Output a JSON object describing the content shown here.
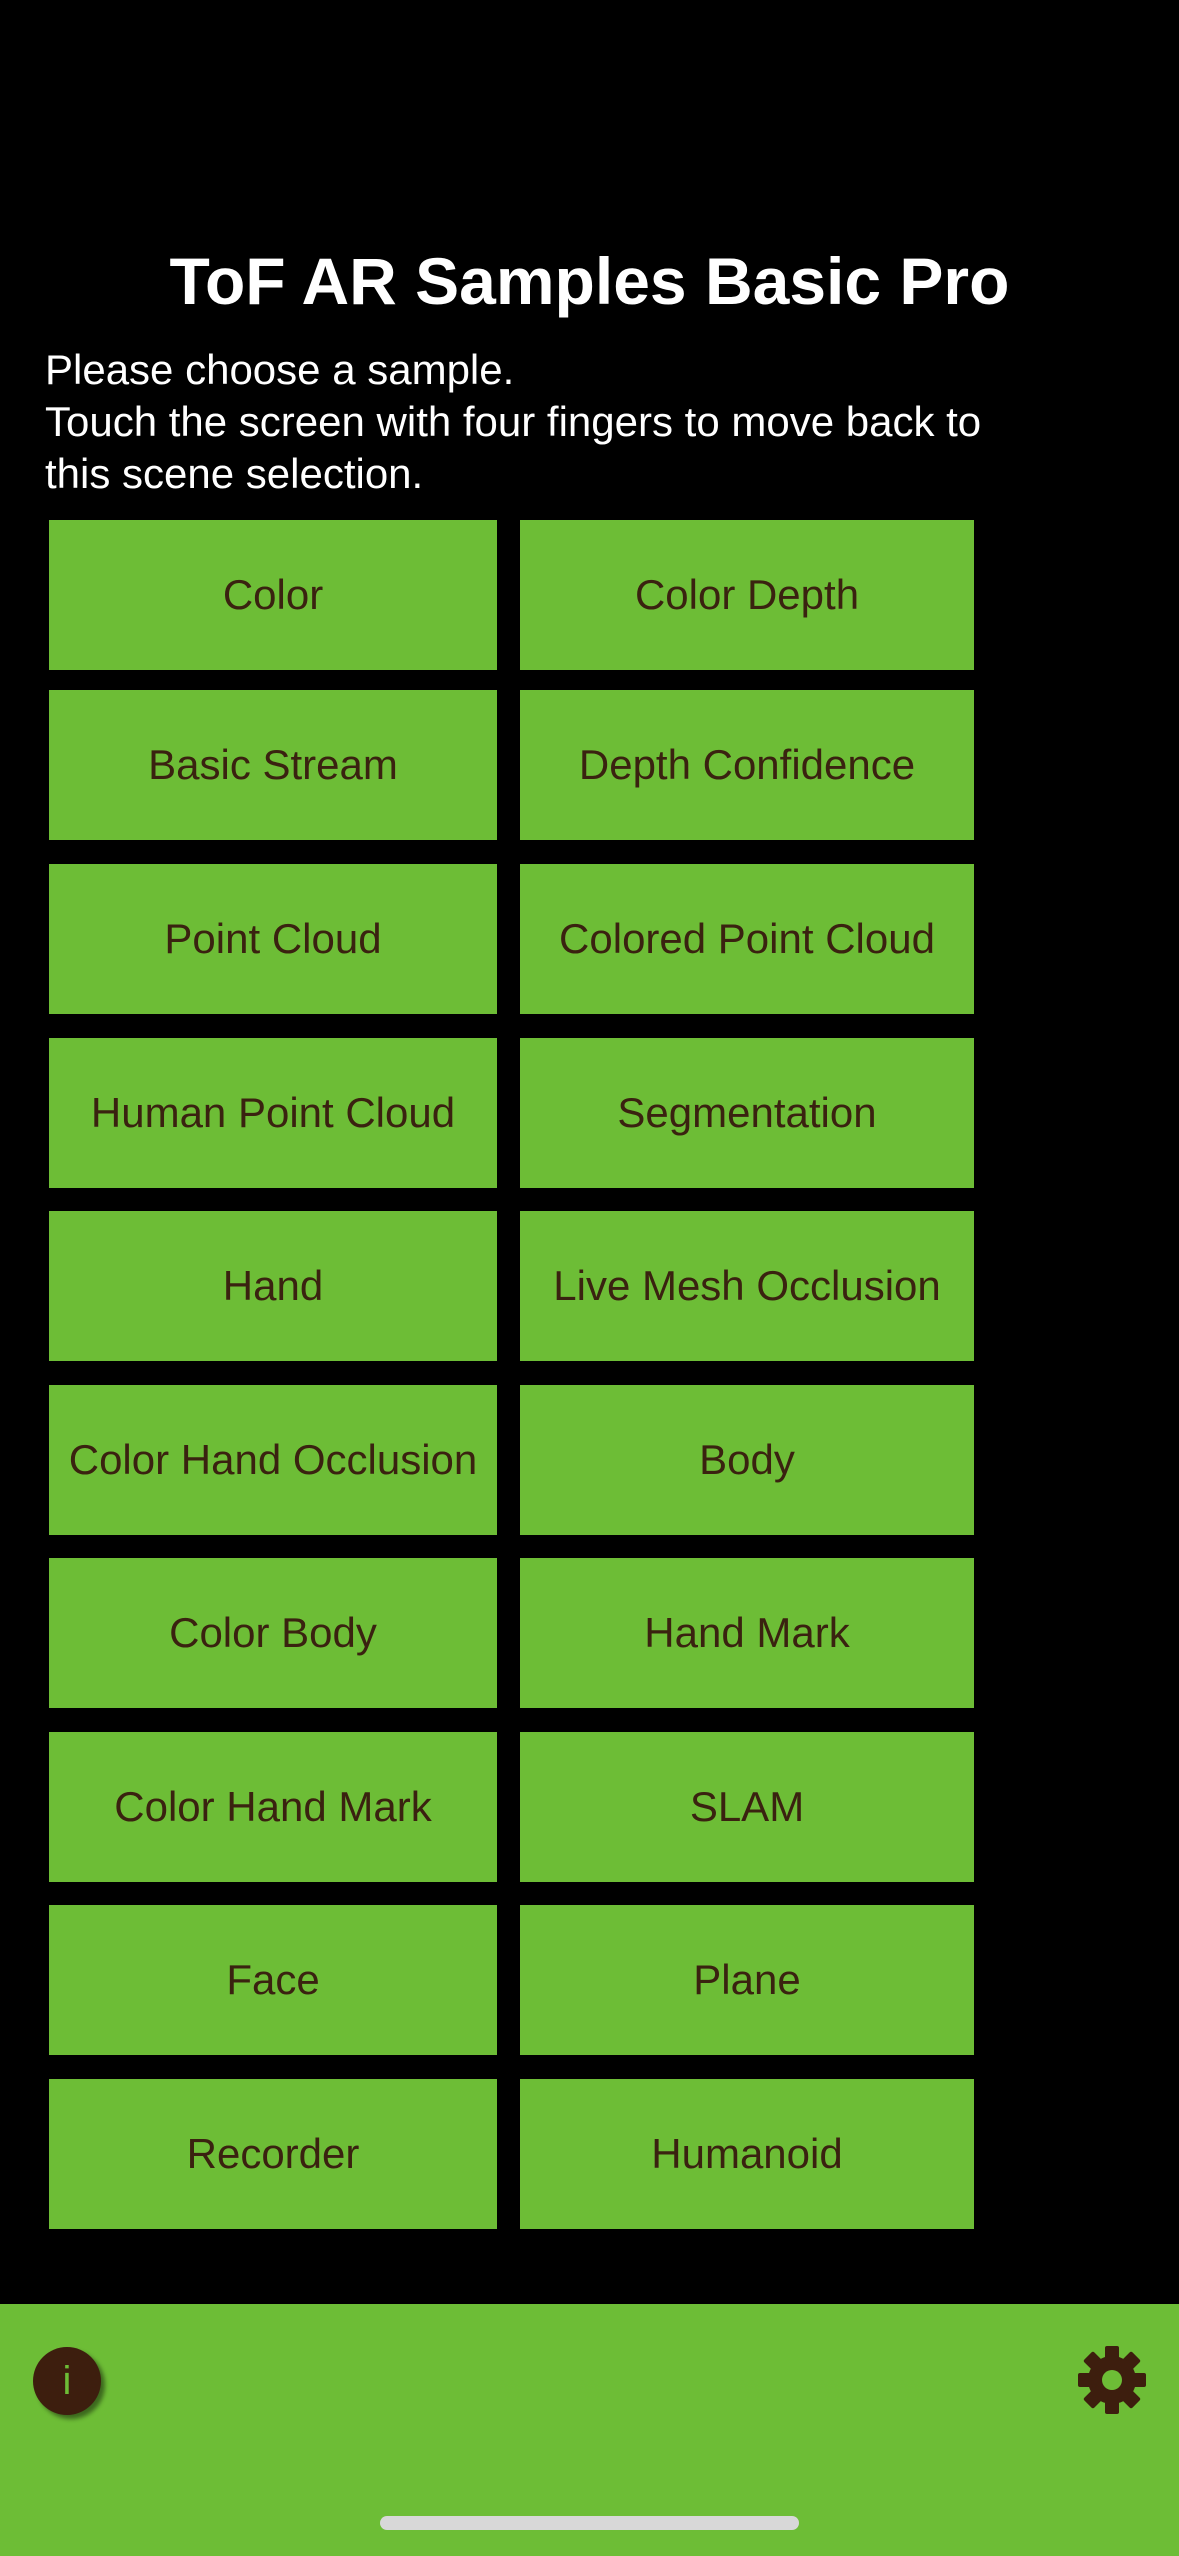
{
  "app": {
    "title": "ToF AR Samples Basic Pro",
    "instructions": [
      "Please choose a sample.",
      "Touch the screen with four fingers to move back to",
      "this scene selection."
    ]
  },
  "samples": [
    {
      "left": "Color",
      "right": "Color Depth"
    },
    {
      "left": "Basic Stream",
      "right": "Depth Confidence"
    },
    {
      "left": "Point Cloud",
      "right": "Colored Point Cloud"
    },
    {
      "left": "Human Point Cloud",
      "right": "Segmentation"
    },
    {
      "left": "Hand",
      "right": "Live Mesh Occlusion"
    },
    {
      "left": "Color Hand Occlusion",
      "right": "Body"
    },
    {
      "left": "Color Body",
      "right": "Hand Mark"
    },
    {
      "left": "Color Hand Mark",
      "right": "SLAM"
    },
    {
      "left": "Face",
      "right": "Plane"
    },
    {
      "left": "Recorder",
      "right": "Humanoid"
    }
  ],
  "toolbar": {
    "info_icon": "i",
    "info_icon_name": "info-icon",
    "settings_icon_name": "gear-icon"
  },
  "colors": {
    "background": "#000000",
    "button": "#6dbd36",
    "button_text": "#3a2210",
    "icon_dark": "#3d1e0e",
    "title_text": "#ffffff"
  }
}
